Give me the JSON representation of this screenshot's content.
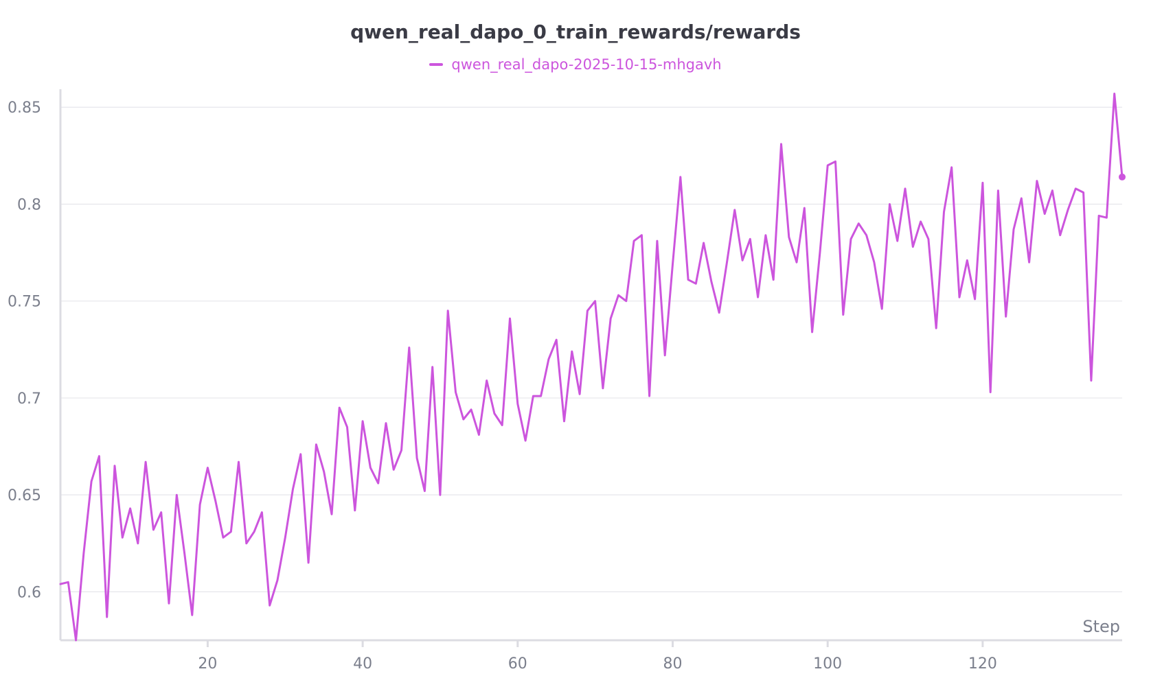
{
  "chart_data": {
    "type": "line",
    "title": "qwen_real_dapo_0_train_rewards/rewards",
    "xlabel": "Step",
    "ylabel": "",
    "xlim": [
      1,
      138
    ],
    "ylim": [
      0.575,
      0.86
    ],
    "xticks": [
      20,
      40,
      60,
      80,
      100,
      120
    ],
    "yticks": [
      0.6,
      0.65,
      0.7,
      0.75,
      0.8,
      0.85
    ],
    "ytick_labels": [
      "0.6",
      "0.65",
      "0.7",
      "0.75",
      "0.8",
      "0.85"
    ],
    "grid": true,
    "legend_position": "top-center",
    "series": [
      {
        "name": "qwen_real_dapo-2025-10-15-mhgavh",
        "color": "#cc55dd",
        "x": [
          1,
          2,
          3,
          4,
          5,
          6,
          7,
          8,
          9,
          10,
          11,
          12,
          13,
          14,
          15,
          16,
          17,
          18,
          19,
          20,
          21,
          22,
          23,
          24,
          25,
          26,
          27,
          28,
          29,
          30,
          31,
          32,
          33,
          34,
          35,
          36,
          37,
          38,
          39,
          40,
          41,
          42,
          43,
          44,
          45,
          46,
          47,
          48,
          49,
          50,
          51,
          52,
          53,
          54,
          55,
          56,
          57,
          58,
          59,
          60,
          61,
          62,
          63,
          64,
          65,
          66,
          67,
          68,
          69,
          70,
          71,
          72,
          73,
          74,
          75,
          76,
          77,
          78,
          79,
          80,
          81,
          82,
          83,
          84,
          85,
          86,
          87,
          88,
          89,
          90,
          91,
          92,
          93,
          94,
          95,
          96,
          97,
          98,
          99,
          100,
          101,
          102,
          103,
          104,
          105,
          106,
          107,
          108,
          109,
          110,
          111,
          112,
          113,
          114,
          115,
          116,
          117,
          118,
          119,
          120,
          121,
          122,
          123,
          124,
          125,
          126,
          127,
          128,
          129,
          130,
          131,
          132,
          133,
          134,
          135,
          136,
          137,
          138
        ],
        "y": [
          0.604,
          0.605,
          0.575,
          0.62,
          0.657,
          0.67,
          0.587,
          0.665,
          0.628,
          0.643,
          0.625,
          0.667,
          0.632,
          0.641,
          0.594,
          0.65,
          0.62,
          0.588,
          0.645,
          0.664,
          0.647,
          0.628,
          0.631,
          0.667,
          0.625,
          0.631,
          0.641,
          0.593,
          0.606,
          0.628,
          0.653,
          0.671,
          0.615,
          0.676,
          0.662,
          0.64,
          0.695,
          0.685,
          0.642,
          0.688,
          0.664,
          0.656,
          0.687,
          0.663,
          0.673,
          0.726,
          0.669,
          0.652,
          0.716,
          0.65,
          0.745,
          0.703,
          0.689,
          0.694,
          0.681,
          0.709,
          0.692,
          0.686,
          0.741,
          0.697,
          0.678,
          0.701,
          0.701,
          0.72,
          0.73,
          0.688,
          0.724,
          0.702,
          0.745,
          0.75,
          0.705,
          0.741,
          0.753,
          0.75,
          0.781,
          0.784,
          0.701,
          0.781,
          0.722,
          0.769,
          0.814,
          0.761,
          0.759,
          0.78,
          0.76,
          0.744,
          0.77,
          0.797,
          0.771,
          0.782,
          0.752,
          0.784,
          0.761,
          0.831,
          0.783,
          0.77,
          0.798,
          0.734,
          0.775,
          0.82,
          0.822,
          0.743,
          0.782,
          0.79,
          0.784,
          0.77,
          0.746,
          0.8,
          0.781,
          0.808,
          0.778,
          0.791,
          0.782,
          0.736,
          0.796,
          0.819,
          0.752,
          0.771,
          0.751,
          0.811,
          0.703,
          0.807,
          0.742,
          0.787,
          0.803,
          0.77,
          0.812,
          0.795,
          0.807,
          0.784,
          0.797,
          0.808,
          0.806,
          0.709,
          0.794,
          0.793,
          0.857,
          0.814
        ]
      }
    ]
  }
}
